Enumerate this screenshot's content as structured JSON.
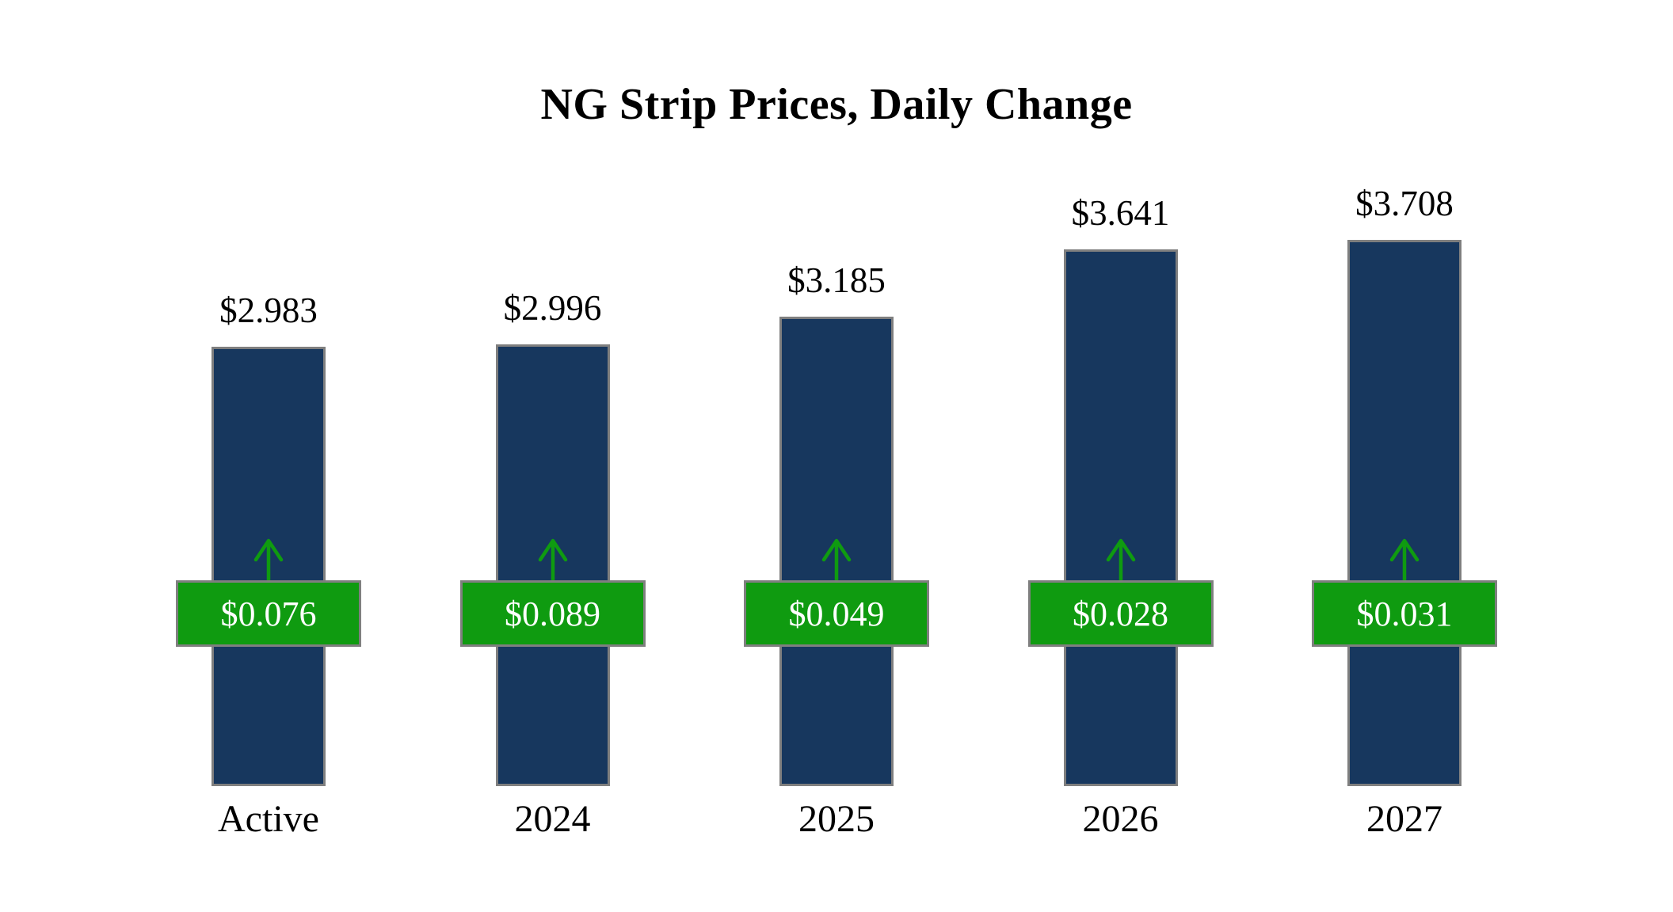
{
  "title": "NG Strip Prices, Daily Change",
  "chart_data": {
    "type": "bar",
    "categories": [
      "Active",
      "2024",
      "2025",
      "2026",
      "2027"
    ],
    "series": [
      {
        "name": "Strip Price",
        "values": [
          2.983,
          2.996,
          3.185,
          3.641,
          3.708
        ]
      },
      {
        "name": "Daily Change",
        "values": [
          0.076,
          0.089,
          0.049,
          0.028,
          0.031
        ]
      }
    ],
    "price_labels": [
      "$2.983",
      "$2.996",
      "$3.185",
      "$3.641",
      "$3.708"
    ],
    "change_labels": [
      "$0.076",
      "$0.089",
      "$0.049",
      "$0.028",
      "$0.031"
    ],
    "title": "NG Strip Prices, Daily Change",
    "xlabel": "",
    "ylabel": "",
    "ylim": [
      0,
      4
    ],
    "grid": false,
    "legend": "none",
    "colors": {
      "bar_fill": "#17375e",
      "bar_border": "#7f7f7f",
      "badge_fill": "#0f9b10",
      "badge_border": "#7f7f7f",
      "badge_text": "#ffffff",
      "arrow": "#0f9b10",
      "text": "#000000",
      "background": "#ffffff"
    },
    "change_direction": "up"
  }
}
